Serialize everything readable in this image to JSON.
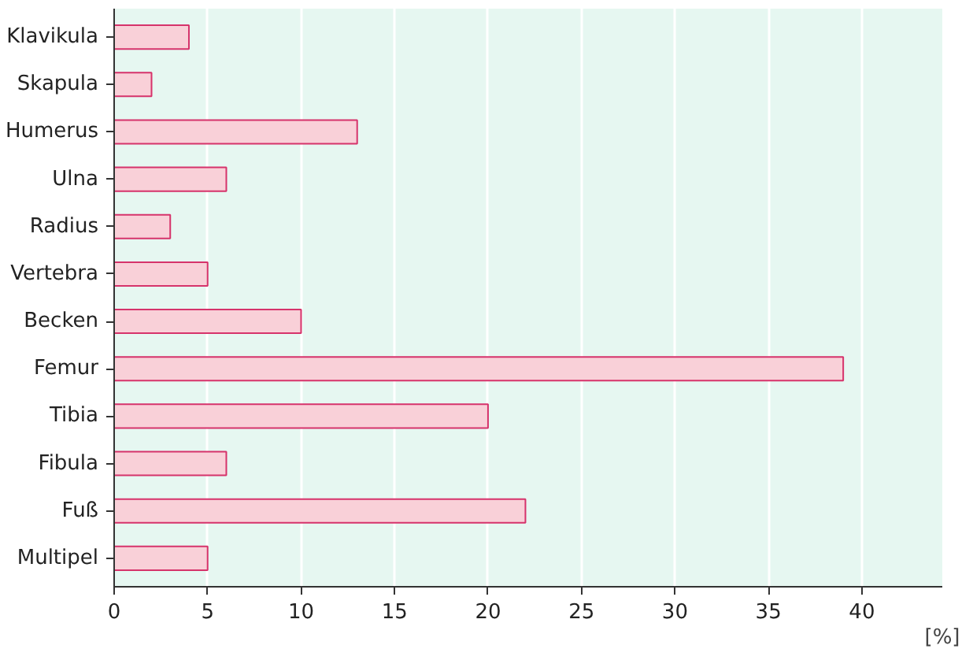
{
  "chart_data": {
    "type": "bar",
    "orientation": "horizontal",
    "xlabel": "[%]",
    "categories": [
      "Klavikula",
      "Skapula",
      "Humerus",
      "Ulna",
      "Radius",
      "Vertebra",
      "Becken",
      "Femur",
      "Tibia",
      "Fibula",
      "Fuß",
      "Multipel"
    ],
    "values": [
      4,
      2,
      13,
      6,
      3,
      5,
      10,
      39,
      20,
      6,
      22,
      5
    ],
    "color": "#f9d0d8",
    "xlim": [
      0,
      44.3
    ],
    "xticks": [
      0,
      5,
      10,
      15,
      20,
      25,
      30,
      35,
      40
    ],
    "grid": "x"
  }
}
